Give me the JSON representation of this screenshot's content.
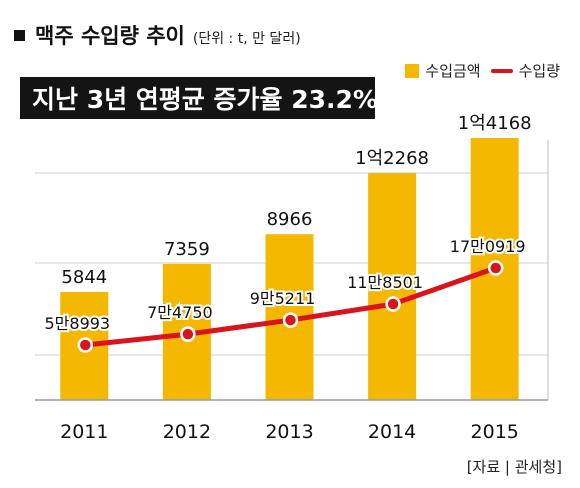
{
  "title": "맥주 수입량 추이",
  "unit_note": "(단위 : t, 만 달러)",
  "banner": "지난 3년 연평균 증가율 23.2%",
  "source": "[자료 | 관세청]",
  "colors": {
    "bar": "#f5b800",
    "line": "#d9141c",
    "banner_bg": "#141414"
  },
  "chart_data": {
    "type": "bar",
    "categories": [
      "2011",
      "2012",
      "2013",
      "2014",
      "2015"
    ],
    "series": [
      {
        "name": "수입금액",
        "type": "bar",
        "values": [
          5844,
          7359,
          8966,
          12268,
          14168
        ],
        "labels": [
          "5844",
          "7359",
          "8966",
          "1억2268",
          "1억4168"
        ]
      },
      {
        "name": "수입량",
        "type": "line",
        "values": [
          58993,
          74750,
          95211,
          118501,
          170919
        ],
        "labels": [
          "5만8993",
          "7만4750",
          "9만5211",
          "11만8501",
          "17만0919"
        ]
      }
    ],
    "grid": true,
    "legend": "top-right"
  }
}
